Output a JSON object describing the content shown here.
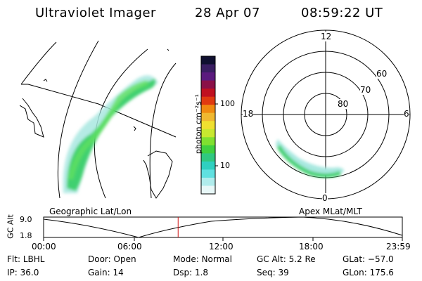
{
  "header": {
    "title": "Ultraviolet Imager",
    "date": "28 Apr 07",
    "time": "08:59:22 UT"
  },
  "panels": {
    "left_label": "Geographic Lat/Lon",
    "right_label": "Apex MLat/MLT"
  },
  "colorbar": {
    "label": "photon cm⁻²s⁻¹",
    "ticks": [
      "100",
      "10"
    ],
    "colors": [
      "#101030",
      "#3a1e62",
      "#5b1a7e",
      "#8a1048",
      "#c01020",
      "#e03a10",
      "#f08a10",
      "#f0b830",
      "#f0e030",
      "#c8e830",
      "#80e030",
      "#40d040",
      "#30c880",
      "#30d0c0",
      "#60e0e0",
      "#b0ecec",
      "#e8f8f8"
    ]
  },
  "polar": {
    "labels": [
      "12",
      "60",
      "70",
      "80",
      "18",
      "6",
      "0"
    ]
  },
  "altitude_plot": {
    "ylabel": "GC Alt",
    "yticks": [
      "9.0",
      "1.8"
    ],
    "xticks": [
      "00:00",
      "06:00",
      "12:00",
      "18:00",
      "23:59"
    ],
    "current_time_fraction": 0.375,
    "current_color": "#d01010"
  },
  "status": {
    "row1": [
      {
        "k": "Flt:",
        "v": "LBHL"
      },
      {
        "k": "Door:",
        "v": "Open"
      },
      {
        "k": "Mode:",
        "v": "Normal"
      },
      {
        "k": "GC Alt:",
        "v": "5.2 Re"
      },
      {
        "k": "GLat:",
        "v": "−57.0"
      }
    ],
    "row2": [
      {
        "k": "IP:",
        "v": "36.0"
      },
      {
        "k": "Gain:",
        "v": "14"
      },
      {
        "k": "Dsp:",
        "v": "1.8"
      },
      {
        "k": "Seq:",
        "v": "39"
      },
      {
        "k": "GLon:",
        "v": "175.6"
      }
    ]
  }
}
